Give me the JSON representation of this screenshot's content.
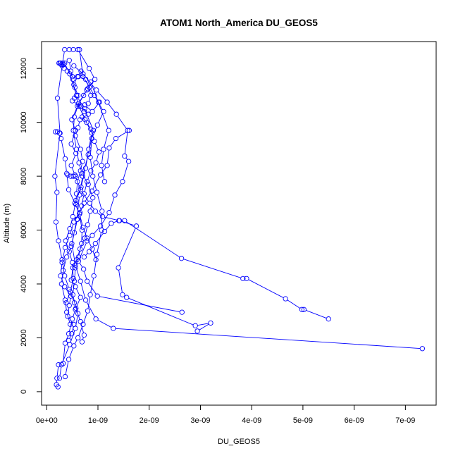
{
  "chart_data": {
    "type": "scatter",
    "title": "ATOM1 North_America DU_GEOS5",
    "xlabel": "DU_GEOS5",
    "ylabel": "Altitude (m)",
    "xlim": [
      -1e-10,
      7.6e-09
    ],
    "ylim": [
      -500,
      13000
    ],
    "x_ticks": [
      0,
      1e-09,
      2e-09,
      3e-09,
      4e-09,
      5e-09,
      6e-09,
      7e-09
    ],
    "x_tick_labels": [
      "0e+00",
      "1e-09",
      "2e-09",
      "3e-09",
      "4e-09",
      "5e-09",
      "6e-09",
      "7e-09"
    ],
    "y_ticks": [
      0,
      2000,
      4000,
      6000,
      8000,
      10000,
      12000
    ],
    "y_tick_labels": [
      "0",
      "2000",
      "4000",
      "6000",
      "8000",
      "10000",
      "12000"
    ],
    "series_color": "#0000ff",
    "grid": false,
    "series": [
      {
        "points": [
          [
            2.2e-10,
            180
          ],
          [
            1.9e-10,
            260
          ],
          [
            2e-10,
            500
          ],
          [
            2.3e-10,
            1000
          ],
          [
            3.2e-10,
            1050
          ],
          [
            3.6e-10,
            1800
          ],
          [
            4.3e-10,
            2150
          ],
          [
            5e-10,
            2700
          ],
          [
            5.6e-10,
            3050
          ],
          [
            6.6e-10,
            3500
          ],
          [
            5.6e-10,
            3900
          ],
          [
            4.8e-10,
            4150
          ],
          [
            5.1e-10,
            4600
          ],
          [
            5.9e-10,
            4900
          ],
          [
            6.5e-10,
            5300
          ],
          [
            7.4e-10,
            5700
          ],
          [
            8e-10,
            6200
          ],
          [
            8.5e-10,
            6700
          ],
          [
            9e-10,
            7200
          ],
          [
            8.1e-10,
            7700
          ],
          [
            6.9e-10,
            8100
          ],
          [
            6.3e-10,
            8500
          ],
          [
            5.8e-10,
            9000
          ],
          [
            5.2e-10,
            9700
          ],
          [
            5.4e-10,
            10200
          ],
          [
            6.2e-10,
            10700
          ],
          [
            7.8e-10,
            11200
          ],
          [
            9.4e-10,
            11600
          ],
          [
            8.3e-10,
            12000
          ],
          [
            6.1e-10,
            12700
          ],
          [
            5.2e-10,
            12700
          ],
          [
            4.4e-10,
            12700
          ]
        ]
      },
      {
        "points": [
          [
            7.33e-09,
            1600
          ],
          [
            1.3e-09,
            2350
          ],
          [
            9.6e-10,
            2700
          ],
          [
            7.6e-10,
            3400
          ],
          [
            6.6e-10,
            4100
          ],
          [
            5.6e-10,
            4700
          ],
          [
            4.9e-10,
            5500
          ],
          [
            5.9e-10,
            6400
          ],
          [
            6.4e-10,
            7300
          ],
          [
            7e-10,
            8000
          ],
          [
            8.1e-10,
            8800
          ],
          [
            9.1e-10,
            9700
          ],
          [
            7.4e-10,
            10500
          ],
          [
            5.8e-10,
            11000
          ],
          [
            4.5e-10,
            11800
          ],
          [
            3.5e-10,
            12200
          ],
          [
            2.6e-10,
            12200
          ]
        ]
      },
      {
        "points": [
          [
            2.5e-10,
            500
          ],
          [
            2.9e-10,
            1000
          ],
          [
            4.5e-10,
            1750
          ],
          [
            5.6e-10,
            2350
          ],
          [
            6.1e-10,
            2900
          ],
          [
            5.4e-10,
            3300
          ],
          [
            4.4e-10,
            3800
          ],
          [
            3.5e-10,
            4300
          ],
          [
            3e-10,
            4900
          ],
          [
            2.3e-10,
            5600
          ],
          [
            1.8e-10,
            6300
          ],
          [
            2e-10,
            7400
          ],
          [
            1.6e-10,
            8000
          ],
          [
            2.6e-10,
            9600
          ],
          [
            2.1e-10,
            10900
          ],
          [
            3.1e-10,
            12200
          ],
          [
            3.5e-10,
            12700
          ]
        ]
      },
      {
        "points": [
          [
            5.5e-09,
            2700
          ],
          [
            5.02e-09,
            3050
          ],
          [
            4.98e-09,
            3050
          ],
          [
            4.66e-09,
            3450
          ],
          [
            3.9e-09,
            4200
          ],
          [
            3.83e-09,
            4200
          ],
          [
            2.63e-09,
            4950
          ],
          [
            1.52e-09,
            6350
          ],
          [
            1.41e-09,
            6350
          ],
          [
            1.26e-09,
            6250
          ],
          [
            1.13e-09,
            5950
          ],
          [
            9.5e-10,
            5500
          ],
          [
            8.3e-10,
            5200
          ],
          [
            7.3e-10,
            5000
          ]
        ]
      },
      {
        "points": [
          [
            2.94e-09,
            2250
          ],
          [
            3.2e-09,
            2550
          ],
          [
            2.9e-09,
            2450
          ],
          [
            1.56e-09,
            3500
          ],
          [
            1.48e-09,
            3600
          ],
          [
            1.4e-09,
            4600
          ],
          [
            1.75e-09,
            6150
          ],
          [
            1.42e-09,
            6350
          ],
          [
            1.09e-09,
            6500
          ],
          [
            9.5e-10,
            6700
          ],
          [
            8.4e-10,
            7000
          ],
          [
            6.6e-10,
            7500
          ],
          [
            5.6e-10,
            8000
          ]
        ]
      },
      {
        "points": [
          [
            2.64e-09,
            2950
          ],
          [
            9.9e-10,
            3550
          ],
          [
            7.9e-10,
            4100
          ],
          [
            7.2e-10,
            4550
          ],
          [
            6.2e-10,
            4850
          ],
          [
            7.9e-10,
            5600
          ],
          [
            8.9e-10,
            5800
          ],
          [
            1.05e-09,
            6150
          ],
          [
            1.22e-09,
            6650
          ],
          [
            1.33e-09,
            7300
          ],
          [
            1.48e-09,
            7800
          ],
          [
            1.6e-09,
            8550
          ],
          [
            1.52e-09,
            8750
          ],
          [
            1.58e-09,
            9700
          ],
          [
            1.36e-09,
            10300
          ],
          [
            1.18e-09,
            10750
          ],
          [
            9.7e-10,
            11200
          ],
          [
            7.1e-10,
            11800
          ],
          [
            5.3e-10,
            12100
          ]
        ]
      },
      {
        "points": [
          [
            3.6e-10,
            560
          ],
          [
            4.3e-10,
            1200
          ],
          [
            5.3e-10,
            1700
          ],
          [
            6.1e-10,
            2000
          ],
          [
            7.1e-10,
            2500
          ],
          [
            8e-10,
            3000
          ],
          [
            8.5e-10,
            3600
          ],
          [
            9.2e-10,
            4300
          ],
          [
            9.8e-10,
            5100
          ],
          [
            1.07e-09,
            6000
          ],
          [
            1.08e-09,
            6700
          ],
          [
            9.8e-10,
            7400
          ],
          [
            9e-10,
            8000
          ],
          [
            8.5e-10,
            8700
          ],
          [
            8.8e-10,
            9400
          ],
          [
            9.9e-10,
            9900
          ],
          [
            1.11e-09,
            10400
          ],
          [
            9.3e-10,
            11000
          ],
          [
            7.1e-10,
            11700
          ],
          [
            6.4e-10,
            12700
          ]
        ]
      },
      {
        "points": [
          [
            3.8e-10,
            3300
          ],
          [
            4.6e-10,
            3700
          ],
          [
            5.2e-10,
            4200
          ],
          [
            5e-10,
            4800
          ],
          [
            4.4e-10,
            5200
          ],
          [
            3.7e-10,
            5600
          ],
          [
            4.5e-10,
            6050
          ],
          [
            5.1e-10,
            6500
          ],
          [
            5.7e-10,
            7100
          ],
          [
            6.7e-10,
            7600
          ],
          [
            7.6e-10,
            8300
          ],
          [
            8.2e-10,
            9000
          ],
          [
            8.8e-10,
            9600
          ],
          [
            7.5e-10,
            10100
          ],
          [
            6.3e-10,
            10600
          ],
          [
            5.8e-10,
            11000
          ],
          [
            5.3e-10,
            11400
          ],
          [
            6e-10,
            11700
          ],
          [
            6.7e-10,
            11900
          ]
        ]
      },
      {
        "points": [
          [
            4.1e-10,
            8050
          ],
          [
            4.7e-10,
            8000
          ],
          [
            5.2e-10,
            8000
          ],
          [
            5.5e-10,
            8050
          ],
          [
            4.8e-10,
            8400
          ],
          [
            5.7e-10,
            8850
          ],
          [
            4.8e-10,
            9200
          ],
          [
            5.6e-10,
            9700
          ],
          [
            4.9e-10,
            10100
          ],
          [
            6e-10,
            10600
          ],
          [
            7.2e-10,
            11000
          ],
          [
            8e-10,
            11250
          ],
          [
            8.6e-10,
            11500
          ],
          [
            1.21e-09,
            9700
          ],
          [
            1.11e-09,
            9000
          ],
          [
            1.07e-09,
            8400
          ],
          [
            1.13e-09,
            7800
          ]
        ]
      },
      {
        "points": [
          [
            1.61e-09,
            9700
          ],
          [
            1.35e-09,
            9400
          ],
          [
            1.22e-09,
            9050
          ],
          [
            1.18e-09,
            8400
          ],
          [
            1.05e-09,
            8050
          ],
          [
            8.8e-10,
            7450
          ],
          [
            7.3e-10,
            7000
          ],
          [
            6.5e-10,
            6650
          ],
          [
            5.3e-10,
            6300
          ],
          [
            4.5e-10,
            5800
          ],
          [
            3.6e-10,
            5350
          ],
          [
            3e-10,
            4800
          ],
          [
            2.7e-10,
            4300
          ],
          [
            3.5e-10,
            3900
          ],
          [
            4.7e-10,
            3550
          ],
          [
            4.4e-10,
            3200
          ],
          [
            4.1e-10,
            2800
          ],
          [
            5.3e-10,
            2500
          ],
          [
            4.9e-10,
            2150
          ],
          [
            4.3e-10,
            1900
          ]
        ]
      },
      {
        "points": [
          [
            1.7e-10,
            9650
          ],
          [
            2.1e-10,
            9650
          ],
          [
            2.5e-10,
            9600
          ],
          [
            2.8e-10,
            9400
          ],
          [
            3.6e-10,
            8650
          ],
          [
            3.9e-10,
            8100
          ],
          [
            4.3e-10,
            7500
          ],
          [
            5.5e-10,
            7000
          ],
          [
            6.4e-10,
            6600
          ],
          [
            6.9e-10,
            6000
          ],
          [
            6.8e-10,
            5500
          ],
          [
            6.2e-10,
            5000
          ],
          [
            5.6e-10,
            4600
          ],
          [
            5.4e-10,
            4100
          ],
          [
            5.1e-10,
            3600
          ],
          [
            5.7e-10,
            3100
          ],
          [
            6.6e-10,
            2600
          ],
          [
            7.3e-10,
            2100
          ],
          [
            6.9e-10,
            1850
          ]
        ]
      },
      {
        "points": [
          [
            4.4e-10,
            12300
          ],
          [
            4.7e-10,
            11900
          ],
          [
            5.1e-10,
            11600
          ],
          [
            5.5e-10,
            11300
          ],
          [
            6.1e-10,
            11000
          ],
          [
            5.4e-10,
            10900
          ],
          [
            5e-10,
            10800
          ],
          [
            6.6e-10,
            10600
          ],
          [
            7.3e-10,
            10400
          ],
          [
            6.9e-10,
            10200
          ],
          [
            7.8e-10,
            10000
          ],
          [
            8.6e-10,
            9750
          ],
          [
            9.3e-10,
            9300
          ],
          [
            1.02e-09,
            8900
          ],
          [
            9.6e-10,
            8500
          ],
          [
            8.6e-10,
            8200
          ],
          [
            7.9e-10,
            7800
          ],
          [
            7.3e-10,
            7350
          ],
          [
            6.8e-10,
            6900
          ],
          [
            6e-10,
            6400
          ],
          [
            5.4e-10,
            5900
          ],
          [
            4.8e-10,
            5400
          ],
          [
            3.9e-10,
            5000
          ],
          [
            3.2e-10,
            4500
          ],
          [
            2.9e-10,
            4000
          ],
          [
            3.6e-10,
            3400
          ],
          [
            3.9e-10,
            2950
          ],
          [
            4.6e-10,
            2500
          ]
        ]
      },
      {
        "points": [
          [
            1.01e-09,
            10750
          ],
          [
            1.03e-09,
            10750
          ],
          [
            8.9e-10,
            10400
          ],
          [
            7.4e-10,
            10650
          ],
          [
            6.7e-10,
            10600
          ],
          [
            8.1e-10,
            10300
          ],
          [
            6.5e-10,
            10100
          ],
          [
            6.1e-10,
            9800
          ],
          [
            5.6e-10,
            9500
          ],
          [
            6.6e-10,
            9000
          ],
          [
            7e-10,
            8550
          ],
          [
            6.6e-10,
            8200
          ],
          [
            6e-10,
            7800
          ],
          [
            5.8e-10,
            7350
          ],
          [
            5.7e-10,
            6950
          ],
          [
            6.4e-10,
            6600
          ],
          [
            7.1e-10,
            6100
          ],
          [
            7.9e-10,
            5700
          ],
          [
            8.9e-10,
            5300
          ],
          [
            9.6e-10,
            4900
          ]
        ]
      },
      {
        "points": [
          [
            3.3e-10,
            12150
          ],
          [
            3e-10,
            12100
          ],
          [
            2.7e-10,
            12200
          ],
          [
            2.4e-10,
            12200
          ],
          [
            2.9e-10,
            12150
          ],
          [
            3.4e-10,
            12000
          ],
          [
            4e-10,
            11900
          ],
          [
            5e-10,
            11700
          ],
          [
            6.2e-10,
            11700
          ],
          [
            7.6e-10,
            11600
          ],
          [
            8.3e-10,
            11300
          ],
          [
            8.6e-10,
            11000
          ],
          [
            8.1e-10,
            10700
          ]
        ]
      }
    ]
  }
}
